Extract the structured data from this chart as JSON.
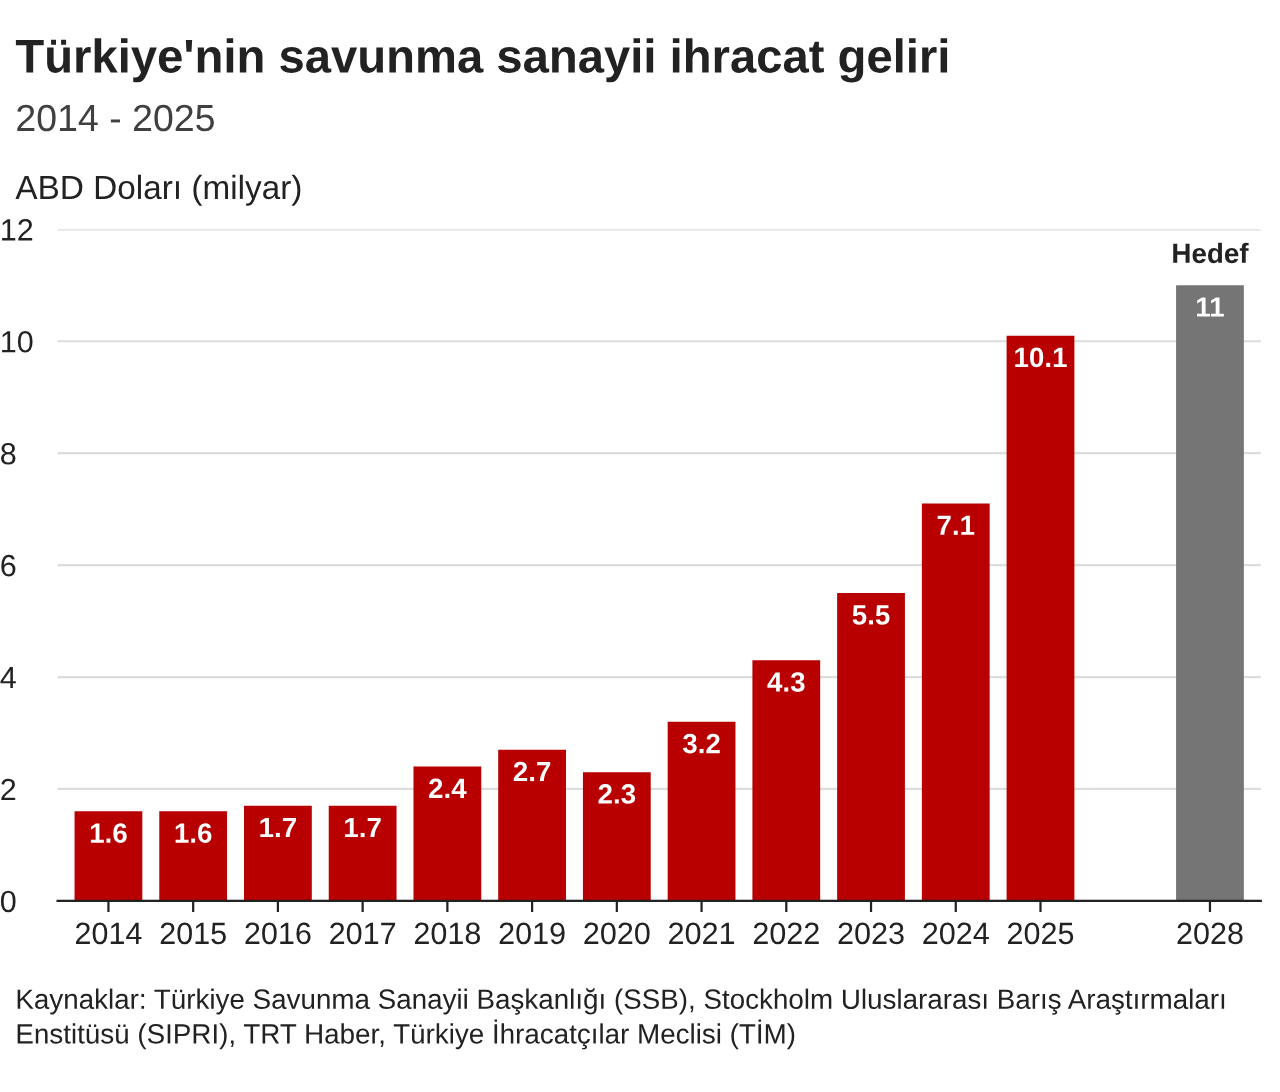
{
  "chart_data": {
    "type": "bar",
    "title": "Türkiye'nin savunma sanayii ihracat geliri",
    "subtitle": "2014 - 2025",
    "ylabel": "ABD Doları (milyar)",
    "categories": [
      "2014",
      "2015",
      "2016",
      "2017",
      "2018",
      "2019",
      "2020",
      "2021",
      "2022",
      "2023",
      "2024",
      "2025",
      null,
      "2028"
    ],
    "values": [
      1.6,
      1.6,
      1.7,
      1.7,
      2.4,
      2.7,
      2.3,
      3.2,
      4.3,
      5.5,
      7.1,
      10.1,
      null,
      11
    ],
    "colors": [
      "#b80000",
      "#b80000",
      "#b80000",
      "#b80000",
      "#b80000",
      "#b80000",
      "#b80000",
      "#b80000",
      "#b80000",
      "#b80000",
      "#b80000",
      "#b80000",
      "#b80000",
      "#757575"
    ],
    "ylim": [
      0,
      12
    ],
    "yticks": [
      0,
      2,
      4,
      6,
      8,
      10,
      12
    ],
    "grid": "y",
    "data_labels": true,
    "annotations": [
      {
        "text": "Hedef",
        "x": "2028",
        "y": 11
      },
      "Kaynaklar: Türkiye Savunma Sanayii Başkanlığı (SSB), Stockholm Uluslararası Barış Araştırmaları Enstitüsü (SIPRI), TRT Haber, Türkiye İhracatçılar Meclisi (TİM)"
    ]
  }
}
